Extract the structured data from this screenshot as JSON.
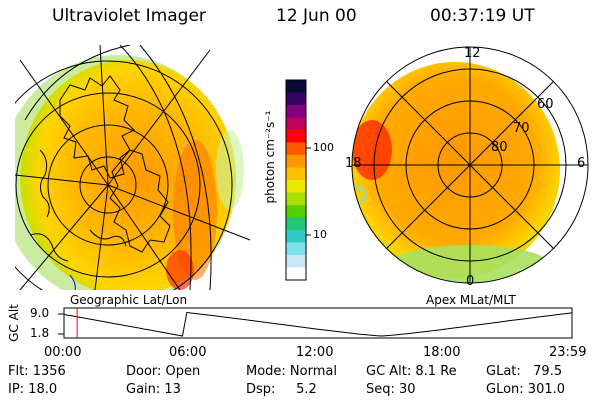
{
  "header": {
    "instrument": "Ultraviolet Imager",
    "date": "12 Jun 00",
    "time": "00:37:19 UT"
  },
  "left_panel": {
    "label": "Geographic Lat/Lon"
  },
  "right_panel": {
    "label": "Apex MLat/MLT",
    "mlt_labels": {
      "top": "12",
      "left": "18",
      "right": "6",
      "bottom": "0"
    },
    "mlat_labels": [
      "60",
      "70",
      "80"
    ]
  },
  "colorbar": {
    "unit_label": "photon cm⁻²s⁻¹",
    "tick_100": "100",
    "tick_10": "10",
    "colors": [
      "#0b0b3a",
      "#3a0066",
      "#800080",
      "#c0005a",
      "#ff0000",
      "#ff5a00",
      "#ff9800",
      "#ffc000",
      "#e8e800",
      "#a8e000",
      "#58d000",
      "#20c878",
      "#30c8c8",
      "#80e0f0",
      "#c8e8f4",
      "#ffffff"
    ]
  },
  "orbit_plot": {
    "ylabel": "GC Alt",
    "y_top": "9.0",
    "y_bottom": "1.8",
    "x_ticks": [
      "00:00",
      "06:00",
      "12:00",
      "18:00",
      "23:59"
    ],
    "marker_time_hours": 0.62,
    "marker_color": "#ff0000"
  },
  "status": {
    "flt": "Flt: 1356",
    "ip": "IP: 18.0",
    "door": "Door: Open",
    "gain": "Gain: 13",
    "mode": "Mode: Normal",
    "dsp": "Dsp:     5.2",
    "gc_alt": "GC Alt: 8.1 Re",
    "seq": "Seq: 30",
    "glat": "GLat:   79.5",
    "glon": "GLon: 301.0"
  }
}
